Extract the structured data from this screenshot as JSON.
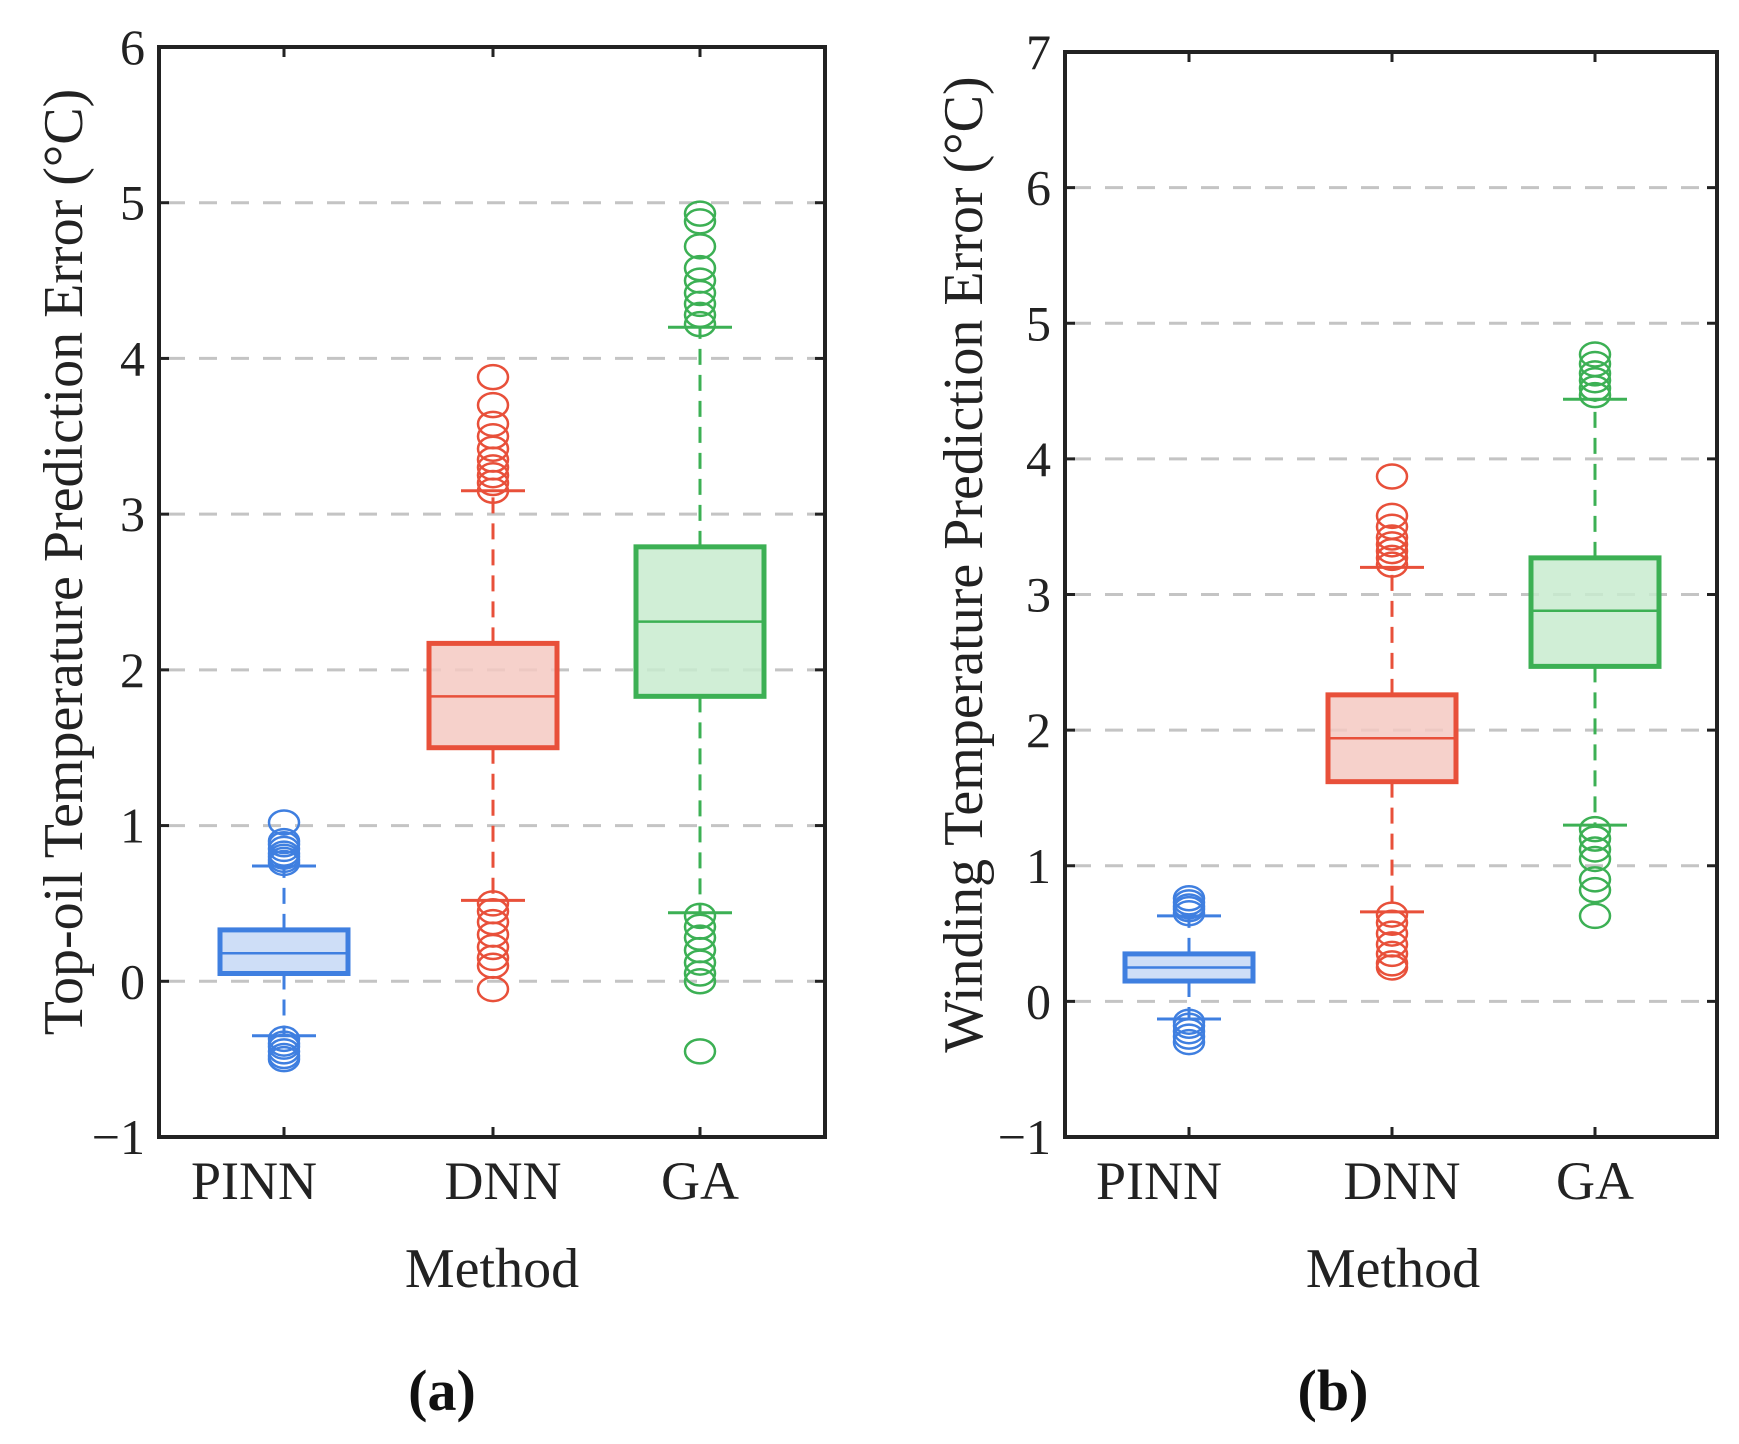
{
  "chart_data": [
    {
      "type": "box",
      "panel_label": "(a)",
      "xlabel": "Method",
      "ylabel": "Top-oil Temperature Prediction Error (°C)",
      "ylim": [
        -1,
        6
      ],
      "yticks": [
        "−1",
        "0",
        "1",
        "2",
        "3",
        "4",
        "5",
        "6"
      ],
      "categories": [
        "PINN",
        "DNN",
        "GA"
      ],
      "grid": "horizontal dashed",
      "colors": [
        "#3f7fe0",
        "#e8503a",
        "#3cb054"
      ],
      "boxes": [
        {
          "q1": 0.05,
          "median": 0.18,
          "q3": 0.33,
          "whisker_low": -0.35,
          "whisker_high": 0.74,
          "outliers": [
            0.76,
            0.78,
            0.8,
            0.82,
            0.85,
            0.88,
            0.9,
            1.02,
            -0.37,
            -0.4,
            -0.42,
            -0.45,
            -0.48,
            -0.5
          ]
        },
        {
          "q1": 1.5,
          "median": 1.83,
          "q3": 2.17,
          "whisker_low": 0.52,
          "whisker_high": 3.15,
          "outliers": [
            3.15,
            3.2,
            3.25,
            3.3,
            3.35,
            3.42,
            3.5,
            3.58,
            3.7,
            3.88,
            0.5,
            0.45,
            0.38,
            0.3,
            0.22,
            0.15,
            0.1,
            -0.05
          ]
        },
        {
          "q1": 1.83,
          "median": 2.31,
          "q3": 2.79,
          "whisker_low": 0.44,
          "whisker_high": 4.2,
          "outliers": [
            4.22,
            4.28,
            4.35,
            4.42,
            4.5,
            4.58,
            4.72,
            4.88,
            4.93,
            0.42,
            0.35,
            0.28,
            0.2,
            0.12,
            0.05,
            0.0,
            -0.45
          ]
        }
      ]
    },
    {
      "type": "box",
      "panel_label": "(b)",
      "xlabel": "Method",
      "ylabel": "Winding Temperature Prediction Error (°C)",
      "ylim": [
        -1,
        7
      ],
      "yticks": [
        "−1",
        "0",
        "1",
        "2",
        "3",
        "4",
        "5",
        "6",
        "7"
      ],
      "categories": [
        "PINN",
        "DNN",
        "GA"
      ],
      "grid": "horizontal dashed",
      "colors": [
        "#3f7fe0",
        "#e8503a",
        "#3cb054"
      ],
      "boxes": [
        {
          "q1": 0.15,
          "median": 0.25,
          "q3": 0.35,
          "whisker_low": -0.13,
          "whisker_high": 0.63,
          "outliers": [
            0.65,
            0.68,
            0.7,
            0.73,
            0.76,
            -0.15,
            -0.18,
            -0.22,
            -0.26,
            -0.3
          ]
        },
        {
          "q1": 1.62,
          "median": 1.94,
          "q3": 2.26,
          "whisker_low": 0.66,
          "whisker_high": 3.2,
          "outliers": [
            3.22,
            3.27,
            3.32,
            3.37,
            3.42,
            3.5,
            3.58,
            3.87,
            0.64,
            0.58,
            0.5,
            0.42,
            0.35,
            0.28,
            0.25
          ]
        },
        {
          "q1": 2.47,
          "median": 2.88,
          "q3": 3.27,
          "whisker_low": 1.3,
          "whisker_high": 4.44,
          "outliers": [
            4.47,
            4.52,
            4.58,
            4.63,
            4.7,
            4.77,
            1.27,
            1.2,
            1.12,
            1.05,
            0.9,
            0.82,
            0.63
          ]
        }
      ]
    }
  ]
}
